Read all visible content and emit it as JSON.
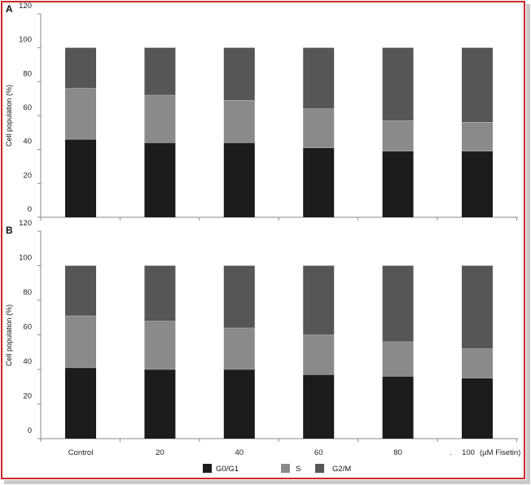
{
  "chart_data": [
    {
      "type": "bar",
      "panel_label": "A",
      "stacked": true,
      "ylabel": "Cell population (%)",
      "ylim": [
        0,
        120
      ],
      "yticks": [
        0,
        20,
        40,
        60,
        80,
        100,
        120
      ],
      "categories": [
        "Control",
        "20",
        "40",
        "60",
        "80",
        "100"
      ],
      "series": [
        {
          "name": "G0/G1",
          "color": "#1c1c1c",
          "values": [
            46,
            44,
            44,
            41,
            39,
            39
          ]
        },
        {
          "name": "S",
          "color": "#8a8a8a",
          "values": [
            30,
            28,
            25,
            23,
            18,
            17
          ]
        },
        {
          "name": "G2/M",
          "color": "#565656",
          "values": [
            24,
            28,
            31,
            36,
            43,
            44
          ]
        }
      ]
    },
    {
      "type": "bar",
      "panel_label": "B",
      "stacked": true,
      "ylabel": "Cell population (%)",
      "ylim": [
        0,
        120
      ],
      "yticks": [
        0,
        20,
        40,
        60,
        80,
        100,
        120
      ],
      "categories": [
        "Control",
        "20",
        "40",
        "60",
        "80",
        "100"
      ],
      "xlabel_suffix": "(μM Fisetin)",
      "series": [
        {
          "name": "G0/G1",
          "color": "#1c1c1c",
          "values": [
            41,
            40,
            40,
            37,
            36,
            35
          ]
        },
        {
          "name": "S",
          "color": "#8a8a8a",
          "values": [
            30,
            28,
            24,
            23,
            20,
            17
          ]
        },
        {
          "name": "G2/M",
          "color": "#565656",
          "values": [
            29,
            32,
            36,
            40,
            44,
            48
          ]
        }
      ]
    }
  ],
  "legend": [
    {
      "label": "G0/G1",
      "color": "#1c1c1c"
    },
    {
      "label": "S",
      "color": "#8a8a8a"
    },
    {
      "label": "G2/M",
      "color": "#565656"
    }
  ],
  "colors": {
    "frame": "#c8282c",
    "axis": "#8a8a8a"
  }
}
